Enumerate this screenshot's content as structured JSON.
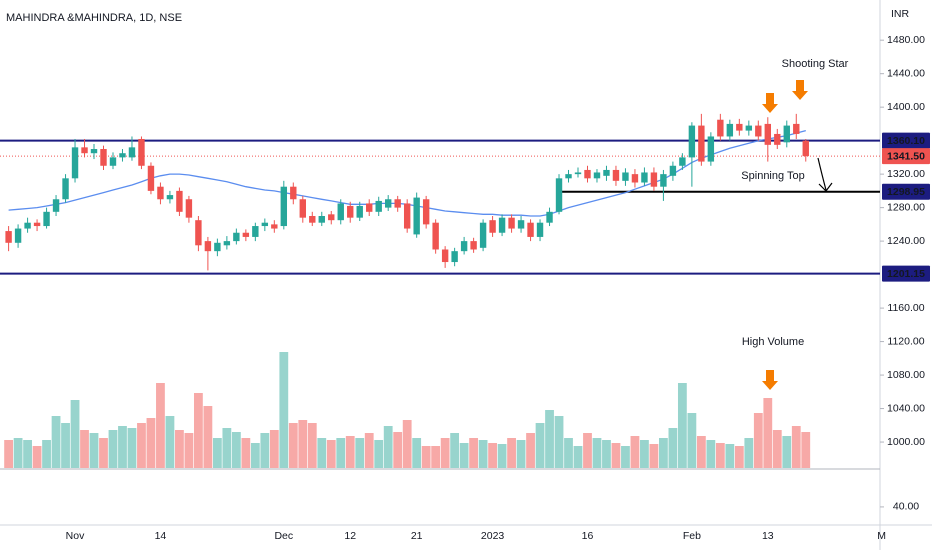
{
  "chart_data": {
    "type": "candlestick",
    "title": "MAHINDRA &MAHINDRA, 1D, NSE",
    "currency": "INR",
    "categories": [
      null,
      null,
      null,
      null,
      null,
      null,
      null,
      "Nov",
      null,
      null,
      null,
      null,
      null,
      null,
      null,
      null,
      "14",
      null,
      null,
      null,
      null,
      null,
      null,
      null,
      null,
      null,
      null,
      null,
      null,
      "Dec",
      null,
      null,
      null,
      null,
      null,
      null,
      "12",
      null,
      null,
      null,
      null,
      null,
      null,
      "21",
      null,
      null,
      null,
      null,
      null,
      null,
      null,
      "2023",
      null,
      null,
      null,
      null,
      null,
      null,
      null,
      null,
      null,
      "16",
      null,
      null,
      null,
      null,
      null,
      null,
      null,
      null,
      null,
      null,
      "Feb",
      null,
      null,
      null,
      null,
      null,
      null,
      null,
      "13",
      null,
      null,
      null,
      null,
      null,
      null,
      null,
      null,
      null,
      null,
      null,
      "M"
    ],
    "open": [
      1252,
      1238,
      1255,
      1262,
      1258,
      1275,
      1290,
      1315,
      1352,
      1345,
      1350,
      1330,
      1340,
      1340,
      1362,
      1330,
      1305,
      1290,
      1300,
      1290,
      1265,
      1240,
      1228,
      1235,
      1240,
      1250,
      1245,
      1258,
      1260,
      1258,
      1305,
      1290,
      1270,
      1262,
      1272,
      1265,
      1282,
      1268,
      1285,
      1275,
      1280,
      1290,
      1285,
      1248,
      1290,
      1262,
      1230,
      1215,
      1228,
      1240,
      1232,
      1265,
      1250,
      1268,
      1255,
      1262,
      1245,
      1262,
      1275,
      1315,
      1320,
      1325,
      1315,
      1318,
      1325,
      1312,
      1320,
      1310,
      1322,
      1305,
      1318,
      1330,
      1340,
      1378,
      1335,
      1385,
      1365,
      1380,
      1372,
      1378,
      1380,
      1368,
      1358,
      1380,
      1360,
      null,
      null,
      null,
      null,
      null,
      null,
      null,
      null
    ],
    "high": [
      1258,
      1260,
      1268,
      1266,
      1280,
      1295,
      1320,
      1362,
      1362,
      1356,
      1354,
      1346,
      1350,
      1365,
      1365,
      1334,
      1310,
      1300,
      1304,
      1294,
      1270,
      1245,
      1243,
      1246,
      1255,
      1254,
      1262,
      1267,
      1265,
      1312,
      1310,
      1294,
      1275,
      1275,
      1276,
      1290,
      1287,
      1287,
      1290,
      1293,
      1295,
      1294,
      1290,
      1298,
      1294,
      1266,
      1234,
      1232,
      1245,
      1244,
      1266,
      1270,
      1272,
      1272,
      1270,
      1266,
      1266,
      1280,
      1320,
      1325,
      1328,
      1330,
      1326,
      1330,
      1330,
      1327,
      1326,
      1328,
      1328,
      1325,
      1335,
      1345,
      1382,
      1392,
      1370,
      1392,
      1385,
      1386,
      1384,
      1384,
      1388,
      1374,
      1384,
      1392,
      1362,
      null,
      null,
      null,
      null,
      null,
      null,
      null,
      null
    ],
    "low": [
      1228,
      1232,
      1250,
      1252,
      1255,
      1270,
      1286,
      1310,
      1340,
      1338,
      1325,
      1326,
      1335,
      1336,
      1326,
      1296,
      1284,
      1285,
      1270,
      1262,
      1228,
      1205,
      1222,
      1230,
      1236,
      1240,
      1240,
      1252,
      1250,
      1254,
      1284,
      1262,
      1258,
      1258,
      1260,
      1260,
      1262,
      1264,
      1270,
      1270,
      1276,
      1275,
      1250,
      1244,
      1255,
      1225,
      1208,
      1210,
      1224,
      1226,
      1228,
      1245,
      1246,
      1250,
      1250,
      1240,
      1240,
      1258,
      1272,
      1310,
      1316,
      1310,
      1310,
      1312,
      1306,
      1306,
      1304,
      1306,
      1300,
      1288,
      1312,
      1325,
      1305,
      1330,
      1330,
      1360,
      1360,
      1366,
      1366,
      1360,
      1335,
      1350,
      1352,
      1362,
      1335,
      null,
      null,
      null,
      null,
      null,
      null,
      null,
      null
    ],
    "close": [
      1238,
      1255,
      1262,
      1258,
      1275,
      1290,
      1315,
      1352,
      1345,
      1350,
      1330,
      1340,
      1345,
      1352,
      1330,
      1300,
      1290,
      1295,
      1275,
      1268,
      1235,
      1228,
      1238,
      1240,
      1250,
      1245,
      1258,
      1262,
      1255,
      1305,
      1290,
      1268,
      1262,
      1270,
      1265,
      1285,
      1268,
      1282,
      1275,
      1288,
      1290,
      1280,
      1255,
      1292,
      1260,
      1230,
      1215,
      1228,
      1240,
      1230,
      1262,
      1250,
      1268,
      1255,
      1265,
      1245,
      1262,
      1275,
      1315,
      1320,
      1322,
      1315,
      1322,
      1325,
      1312,
      1322,
      1310,
      1322,
      1305,
      1320,
      1330,
      1340,
      1378,
      1335,
      1365,
      1365,
      1380,
      1372,
      1378,
      1365,
      1355,
      1355,
      1378,
      1368,
      1341.5,
      null,
      null,
      null,
      null,
      null,
      null,
      null,
      null
    ],
    "up_color": "#26a69a",
    "down_color": "#ef5350",
    "ma": {
      "color": "#5b8def",
      "values": [
        1277,
        1278,
        1279,
        1280,
        1282,
        1284,
        1286,
        1289,
        1292,
        1295,
        1298,
        1301,
        1304,
        1307,
        1311,
        1315,
        1318,
        1320,
        1320,
        1319,
        1317,
        1315,
        1313,
        1311,
        1308,
        1305,
        1303,
        1301,
        1300,
        1298,
        1296,
        1294,
        1292,
        1290,
        1288,
        1286,
        1284,
        1284,
        1284,
        1285,
        1285,
        1285,
        1284,
        1282,
        1280,
        1278,
        1276,
        1275,
        1274,
        1273,
        1272,
        1272,
        1271,
        1271,
        1271,
        1270,
        1270,
        1272,
        1276,
        1280,
        1283,
        1286,
        1289,
        1292,
        1295,
        1298,
        1302,
        1306,
        1310,
        1314,
        1320,
        1327,
        1334,
        1339,
        1343,
        1347,
        1351,
        1354,
        1357,
        1360,
        1362,
        1364,
        1366,
        1369,
        1372,
        null,
        null,
        null,
        null,
        null,
        null,
        null,
        null
      ]
    },
    "volume": {
      "up_color": "#98d4cd",
      "down_color": "#f7a9a7",
      "lim": [
        0,
        120
      ],
      "values": [
        28,
        30,
        28,
        22,
        28,
        52,
        45,
        68,
        38,
        35,
        30,
        38,
        42,
        40,
        45,
        50,
        85,
        52,
        38,
        35,
        75,
        62,
        30,
        40,
        36,
        30,
        25,
        35,
        38,
        116,
        45,
        48,
        45,
        30,
        28,
        30,
        32,
        30,
        35,
        28,
        42,
        36,
        48,
        30,
        22,
        22,
        30,
        35,
        25,
        30,
        28,
        25,
        24,
        30,
        28,
        35,
        45,
        58,
        52,
        30,
        22,
        35,
        30,
        28,
        25,
        22,
        32,
        28,
        24,
        30,
        40,
        85,
        55,
        32,
        28,
        25,
        24,
        22,
        30,
        55,
        70,
        38,
        32,
        42,
        36,
        null,
        null,
        null,
        null,
        null,
        null,
        null,
        null
      ]
    },
    "ylim": [
      969,
      1528
    ],
    "yticks": [
      {
        "value": 1480,
        "label": "1480.00"
      },
      {
        "value": 1440,
        "label": "1440.00"
      },
      {
        "value": 1400,
        "label": "1400.00"
      },
      {
        "value": 1320,
        "label": "1320.00"
      },
      {
        "value": 1280,
        "label": "1280.00"
      },
      {
        "value": 1240,
        "label": "1240.00"
      },
      {
        "value": 1160,
        "label": "1160.00"
      },
      {
        "value": 1120,
        "label": "1120.00"
      },
      {
        "value": 1080,
        "label": "1080.00"
      },
      {
        "value": 1040,
        "label": "1040.00"
      },
      {
        "value": 1000,
        "label": "1000.00"
      }
    ],
    "y2lim": [
      20,
      75
    ],
    "y2ticks": [
      {
        "value": 40,
        "label": "40.00"
      }
    ],
    "levels": [
      {
        "value": 1360.1,
        "label": "1360.10",
        "color": "#1c1c80",
        "label_color": "#1c1c80",
        "from": 0
      },
      {
        "value": 1341.5,
        "label": "1341.50",
        "color": "#ef5350",
        "label_color": "#ef5350",
        "style": "dotted",
        "from": 0
      },
      {
        "value": 1298.95,
        "label": "1298.95",
        "color": "#000000",
        "label_color": "#1c1c80",
        "from": 58
      },
      {
        "value": 1201.15,
        "label": "1201.15",
        "color": "#1c1c80",
        "label_color": "#1c1c80",
        "from": 0
      }
    ],
    "annotations": [
      "Shooting Star",
      "Spinning Top",
      "High Volume"
    ]
  }
}
